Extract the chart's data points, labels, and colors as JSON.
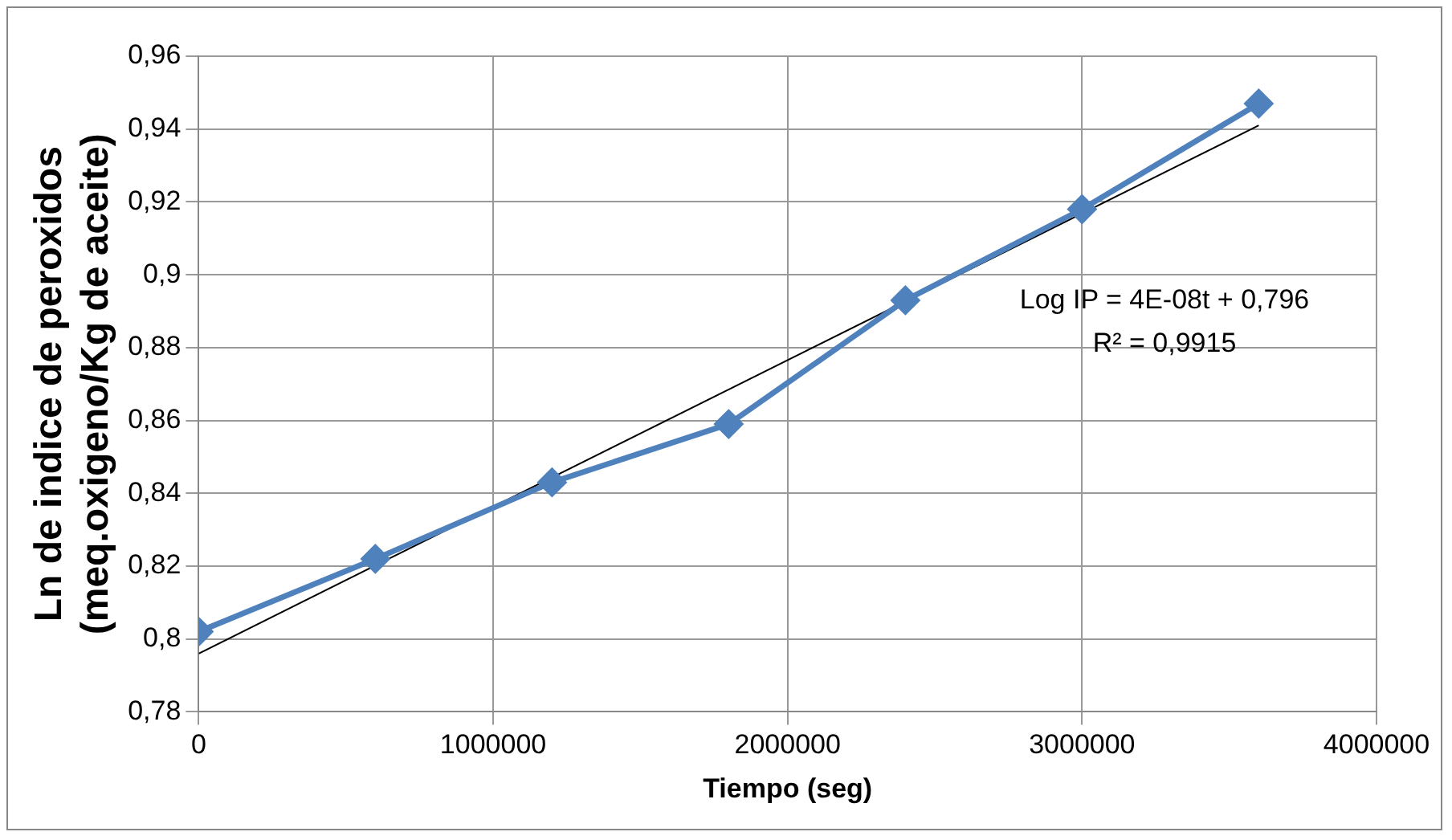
{
  "chart_data": {
    "type": "line",
    "xlabel": "Tiempo (seg)",
    "ylabel": "Ln de indice de peroxidos\n(meq.oxigeno/Kg de aceite)",
    "x": [
      0,
      600000,
      1200000,
      1800000,
      2400000,
      3000000,
      3600000
    ],
    "series": [
      {
        "color": "#4f81bd",
        "values": [
          0.802,
          0.822,
          0.843,
          0.859,
          0.893,
          0.918,
          0.947
        ],
        "marker": "diamond"
      },
      {
        "type": "line",
        "color": "#000000",
        "x": [
          0,
          3600000
        ],
        "values": [
          0.796,
          0.941
        ],
        "marker": "none"
      }
    ],
    "xlim": [
      0,
      4000000
    ],
    "xticks": [
      0,
      1000000,
      2000000,
      3000000,
      4000000
    ],
    "ylim": [
      0.78,
      0.96
    ],
    "yticks": [
      {
        "value": 0.78,
        "label": "0,78"
      },
      {
        "value": 0.8,
        "label": "0,8"
      },
      {
        "value": 0.82,
        "label": "0,82"
      },
      {
        "value": 0.84,
        "label": "0,84"
      },
      {
        "value": 0.86,
        "label": "0,86"
      },
      {
        "value": 0.88,
        "label": "0,88"
      },
      {
        "value": 0.9,
        "label": "0,9"
      },
      {
        "value": 0.92,
        "label": "0,92"
      },
      {
        "value": 0.94,
        "label": "0,94"
      },
      {
        "value": 0.96,
        "label": "0,96"
      }
    ],
    "annotations": [
      "Log IP = 4E-08t + 0,796",
      "R² = 0,9915"
    ],
    "grid": true,
    "legend": false
  }
}
